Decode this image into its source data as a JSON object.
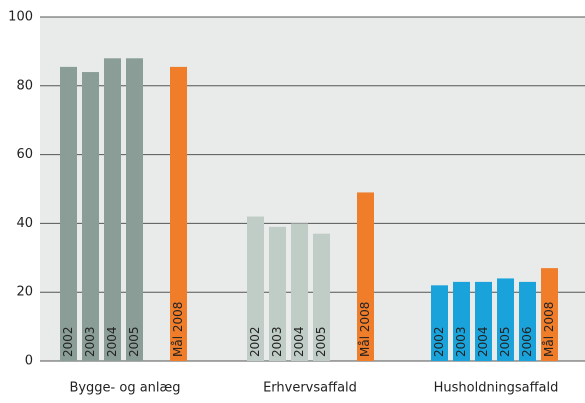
{
  "chart_data": {
    "type": "bar",
    "ylim": [
      0,
      100
    ],
    "yticks": [
      0,
      20,
      40,
      60,
      80,
      100
    ],
    "grid": true,
    "groups": [
      {
        "name": "Bygge- og anlæg",
        "bars": [
          {
            "label": "2002",
            "value": 85.5,
            "color": "#8a9e97"
          },
          {
            "label": "2003",
            "value": 84,
            "color": "#8a9e97"
          },
          {
            "label": "2004",
            "value": 88,
            "color": "#8a9e97"
          },
          {
            "label": "2005",
            "value": 88,
            "color": "#8a9e97"
          },
          {
            "label": "Mål 2008",
            "value": 85.5,
            "color": "#f07d2a"
          }
        ]
      },
      {
        "name": "Erhvervsaffald",
        "bars": [
          {
            "label": "2002",
            "value": 42,
            "color": "#c0cdc6"
          },
          {
            "label": "2003",
            "value": 39,
            "color": "#c0cdc6"
          },
          {
            "label": "2004",
            "value": 40,
            "color": "#c0cdc6"
          },
          {
            "label": "2005",
            "value": 37,
            "color": "#c0cdc6"
          },
          {
            "label": "Mål 2008",
            "value": 49,
            "color": "#f07d2a"
          }
        ]
      },
      {
        "name": "Husholdningsaffald",
        "bars": [
          {
            "label": "2002",
            "value": 22,
            "color": "#1aa3db"
          },
          {
            "label": "2003",
            "value": 23,
            "color": "#1aa3db"
          },
          {
            "label": "2004",
            "value": 23,
            "color": "#1aa3db"
          },
          {
            "label": "2005",
            "value": 24,
            "color": "#1aa3db"
          },
          {
            "label": "2006",
            "value": 23,
            "color": "#1aa3db"
          },
          {
            "label": "Mål 2008",
            "value": 27,
            "color": "#f07d2a"
          }
        ]
      }
    ]
  }
}
